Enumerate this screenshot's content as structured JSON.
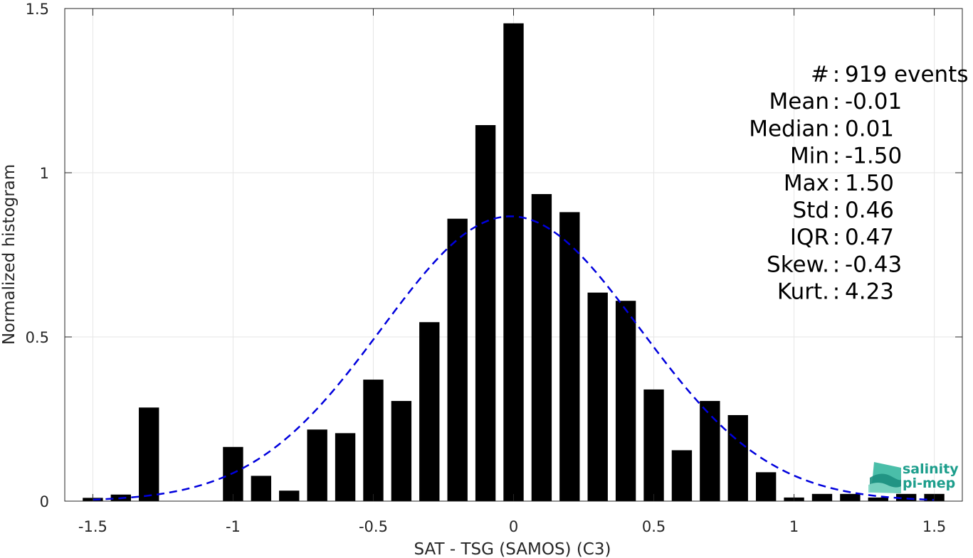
{
  "chart_data": {
    "type": "bar",
    "xlabel": "SAT - TSG (SAMOS) (C3)",
    "ylabel": "Normalized histogram",
    "xlim": [
      -1.6,
      1.6
    ],
    "ylim": [
      0,
      1.5
    ],
    "xticks": [
      -1.5,
      -1,
      -0.5,
      0,
      0.5,
      1,
      1.5
    ],
    "xtick_labels": [
      "-1.5",
      "-1",
      "-0.5",
      "0",
      "0.5",
      "1",
      "1.5"
    ],
    "yticks": [
      0,
      0.5,
      1,
      1.5
    ],
    "ytick_labels": [
      "0",
      "0.5",
      "1",
      "1.5"
    ],
    "grid": true,
    "bar_color": "#000000",
    "bar_width": 0.072,
    "x": [
      -1.5,
      -1.4,
      -1.3,
      -1.2,
      -1.1,
      -1.0,
      -0.9,
      -0.8,
      -0.7,
      -0.6,
      -0.5,
      -0.4,
      -0.3,
      -0.2,
      -0.1,
      0.0,
      0.1,
      0.2,
      0.3,
      0.4,
      0.5,
      0.6,
      0.7,
      0.8,
      0.9,
      1.0,
      1.1,
      1.2,
      1.3,
      1.4,
      1.5
    ],
    "values": [
      0.01,
      0.02,
      0.285,
      0,
      0,
      0.165,
      0.077,
      0.032,
      0.218,
      0.207,
      0.37,
      0.305,
      0.545,
      0.86,
      1.145,
      1.455,
      0.935,
      0.88,
      0.635,
      0.61,
      0.34,
      0.155,
      0.305,
      0.262,
      0.088,
      0.011,
      0.022,
      0.022,
      0.011,
      0.022,
      0.022
    ],
    "fit_curve": {
      "type": "normal",
      "mean": -0.01,
      "std": 0.46,
      "color": "#0000dd",
      "style": "dashed"
    },
    "stats_lines": [
      "#  : 919 events",
      "Mean : -0.01",
      "Median : 0.01",
      "Min : -1.50",
      "Max : 1.50",
      "Std : 0.46",
      "IQR : 0.47",
      "Skew. : -0.43",
      "Kurt. : 4.23"
    ]
  },
  "logo": {
    "line1": "salinity",
    "line2": "pi-mep"
  }
}
